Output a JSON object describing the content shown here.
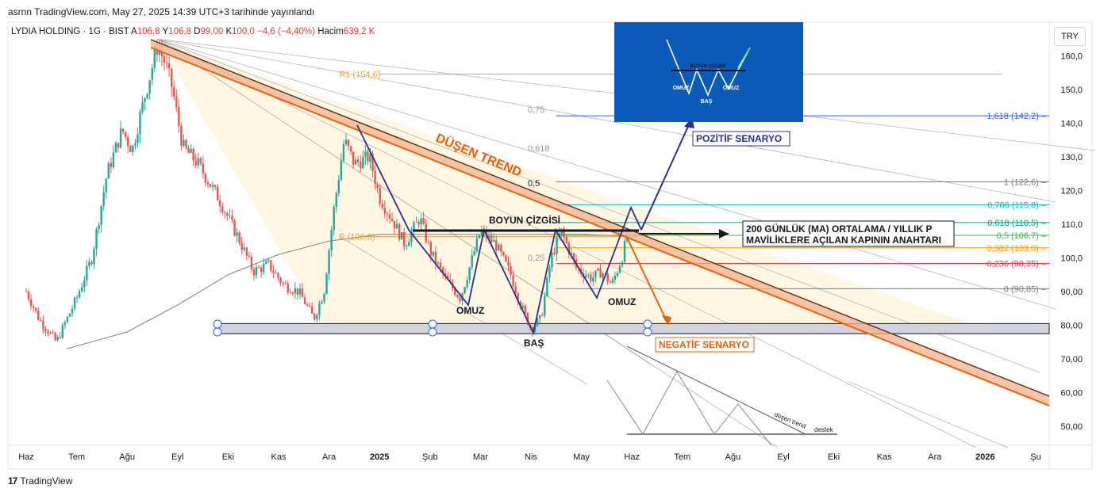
{
  "header": {
    "published": "asrnn TradingView.com, May 27, 2025 14:39 UTC+3 tarihinde yayınlandı"
  },
  "legend": {
    "symbol": "LYDIA HOLDING · 1G · BIST",
    "open_label": "A",
    "open": "106,8",
    "high_label": "Y",
    "high": "106,8",
    "low_label": "D",
    "low": "99,00",
    "close_label": "K",
    "close": "100,0",
    "change": "−4,6 (−4,40%)",
    "volume_label": "Hacim",
    "volume": "639,2 K"
  },
  "currency_button": "TRY",
  "footer": {
    "brand": "TradingView",
    "logo": "tv-logo-icon"
  },
  "colors": {
    "up": "#26a69a",
    "down": "#ef5350",
    "trend": "#e8600c",
    "scenario": "#2b2f8c",
    "ma": "#808080"
  },
  "chart_data": {
    "type": "candlestick",
    "title": "",
    "ylim": [
      42,
      168
    ],
    "y_ticks": [
      "50,00",
      "60,00",
      "70,00",
      "80,00",
      "90,00",
      "100,0",
      "110,0",
      "120,0",
      "130,0",
      "140,0",
      "150,0",
      "160,0"
    ],
    "y_tick_values": [
      50,
      60,
      70,
      80,
      90,
      100,
      110,
      120,
      130,
      140,
      150,
      160
    ],
    "x_ticks": [
      "Haz",
      "Tem",
      "Ağu",
      "Eyl",
      "Eki",
      "Kas",
      "Ara",
      "2025",
      "Şub",
      "Mar",
      "Nis",
      "May",
      "Haz",
      "Tem",
      "Ağu",
      "Eyl",
      "Eki",
      "Kas",
      "Ara",
      "2026",
      "Şu"
    ],
    "x_tick_months": [
      0,
      1,
      2,
      3,
      4,
      5,
      6,
      7,
      8,
      9,
      10,
      11,
      12,
      13,
      14,
      15,
      16,
      17,
      18,
      19,
      20
    ],
    "price_path": [
      {
        "m": 0,
        "v": 90
      },
      {
        "m": 0.25,
        "v": 82
      },
      {
        "m": 0.6,
        "v": 75
      },
      {
        "m": 0.75,
        "v": 80
      },
      {
        "m": 1.0,
        "v": 88
      },
      {
        "m": 1.3,
        "v": 100
      },
      {
        "m": 1.6,
        "v": 125
      },
      {
        "m": 1.9,
        "v": 138
      },
      {
        "m": 2.1,
        "v": 132
      },
      {
        "m": 2.3,
        "v": 145
      },
      {
        "m": 2.6,
        "v": 163
      },
      {
        "m": 2.75,
        "v": 158
      },
      {
        "m": 2.9,
        "v": 150
      },
      {
        "m": 3.1,
        "v": 133
      },
      {
        "m": 3.4,
        "v": 128
      },
      {
        "m": 3.8,
        "v": 118
      },
      {
        "m": 4.2,
        "v": 106
      },
      {
        "m": 4.5,
        "v": 96
      },
      {
        "m": 4.8,
        "v": 98
      },
      {
        "m": 5.1,
        "v": 92
      },
      {
        "m": 5.4,
        "v": 90
      },
      {
        "m": 5.7,
        "v": 82
      },
      {
        "m": 5.9,
        "v": 90
      },
      {
        "m": 6.1,
        "v": 115
      },
      {
        "m": 6.3,
        "v": 135
      },
      {
        "m": 6.5,
        "v": 128
      },
      {
        "m": 6.8,
        "v": 130
      },
      {
        "m": 7.0,
        "v": 118
      },
      {
        "m": 7.3,
        "v": 110
      },
      {
        "m": 7.5,
        "v": 104
      },
      {
        "m": 7.8,
        "v": 112
      },
      {
        "m": 8.0,
        "v": 102
      },
      {
        "m": 8.3,
        "v": 94
      },
      {
        "m": 8.6,
        "v": 88
      },
      {
        "m": 9.0,
        "v": 108
      },
      {
        "m": 9.3,
        "v": 104
      },
      {
        "m": 9.6,
        "v": 95
      },
      {
        "m": 9.8,
        "v": 86
      },
      {
        "m": 10.0,
        "v": 79
      },
      {
        "m": 10.2,
        "v": 82
      },
      {
        "m": 10.4,
        "v": 100
      },
      {
        "m": 10.6,
        "v": 108
      },
      {
        "m": 10.9,
        "v": 97
      },
      {
        "m": 11.2,
        "v": 94
      },
      {
        "m": 11.4,
        "v": 96
      },
      {
        "m": 11.6,
        "v": 92
      },
      {
        "m": 11.8,
        "v": 100
      },
      {
        "m": 11.9,
        "v": 106
      }
    ],
    "moving_average": {
      "label": "200 GÜNLÜK (MA) ORTALAMA  / YILLIK P",
      "points": [
        {
          "m": 0.8,
          "v": 73
        },
        {
          "m": 2,
          "v": 78
        },
        {
          "m": 3,
          "v": 86
        },
        {
          "m": 4,
          "v": 95
        },
        {
          "m": 5,
          "v": 101
        },
        {
          "m": 6,
          "v": 105
        },
        {
          "m": 7,
          "v": 107
        },
        {
          "m": 8,
          "v": 107
        },
        {
          "m": 9,
          "v": 107
        },
        {
          "m": 10,
          "v": 107
        },
        {
          "m": 11,
          "v": 107
        },
        {
          "m": 11.9,
          "v": 106.5
        }
      ]
    },
    "fib_levels": [
      {
        "label": "1,618 (142,2)",
        "value": 142.2,
        "color": "#2962ff"
      },
      {
        "label": "1 (122,6)",
        "value": 122.6,
        "color": "#787b86"
      },
      {
        "label": "0,786 (115,8)",
        "value": 115.8,
        "color": "#00bcd4"
      },
      {
        "label": "0,618 (110,5)",
        "value": 110.5,
        "color": "#089981"
      },
      {
        "label": "0,5 (106,7)",
        "value": 106.7,
        "color": "#4caf50"
      },
      {
        "label": "0,382 (103,0)",
        "value": 103.0,
        "color": "#ff9800"
      },
      {
        "label": "0,236 (98,35)",
        "value": 98.35,
        "color": "#f23645"
      },
      {
        "label": "0 (90,85)",
        "value": 90.85,
        "color": "#787b86"
      }
    ],
    "pivots": [
      {
        "label": "R1 (154,6)",
        "value": 154.6
      },
      {
        "label": "P (106,3)",
        "value": 106.3
      }
    ],
    "fan_labels": [
      "0,75",
      "0,618",
      "0,5",
      "0,25"
    ],
    "support": {
      "low": 77.5,
      "high": 80.5
    },
    "annotations": {
      "trend": "DÜŞEN TREND",
      "neckline": "BOYUN ÇİZGİSİ",
      "left_shoulder": "OMUZ",
      "head": "BAŞ",
      "right_shoulder": "OMUZ",
      "positive": "POZİTİF SENARYO",
      "negative": "NEGATİF SENARYO",
      "ma_note_line1": "200 GÜNLÜK (MA) ORTALAMA  / YILLIK P",
      "ma_note_line2": "MAVİLİKLERE AÇILAN KAPININ ANAHTARI",
      "inset_neck": "BOYUN ÇİZGİSİ",
      "inset_omuz_l": "OMUZ",
      "inset_bas": "BAŞ",
      "inset_omuz_r": "OMUZ",
      "sketch_trend": "düşen trend",
      "sketch_support": "destek"
    }
  }
}
